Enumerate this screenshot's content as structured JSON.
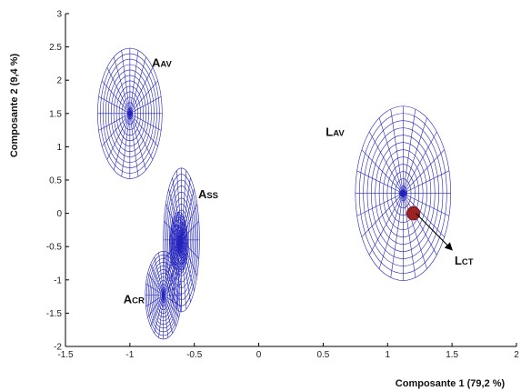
{
  "chart_data": {
    "type": "scatter",
    "title": "",
    "xlabel": "Composante 1 (79,2 %)",
    "ylabel": "Composante 2 (9,4 %)",
    "xlim": [
      -1.5,
      2
    ],
    "ylim": [
      -2,
      3
    ],
    "xticks": [
      "-1.5",
      "-1",
      "-0.5",
      "0",
      "0.5",
      "1",
      "1.5",
      "2"
    ],
    "xtick_values": [
      -1.5,
      -1,
      -0.5,
      0,
      0.5,
      1,
      1.5,
      2
    ],
    "yticks": [
      "-2",
      "-1.5",
      "-1",
      "-0.5",
      "0",
      "0.5",
      "1",
      "1.5",
      "2",
      "2.5",
      "3"
    ],
    "ytick_values": [
      -2,
      -1.5,
      -1,
      -0.5,
      0,
      0.5,
      1,
      1.5,
      2,
      2.5,
      3
    ],
    "grid": false,
    "colors": {
      "ellipse": "#2222bb",
      "lct": "#8b1a1a",
      "axis": "#000000"
    },
    "series": [
      {
        "label_main": "A",
        "label_sub": "AV",
        "center": [
          -1.0,
          1.5
        ],
        "radius": [
          0.25,
          0.98
        ],
        "color": "#2222bb"
      },
      {
        "label_main": "A",
        "label_sub": "SS",
        "center": [
          -0.62,
          -0.45
        ],
        "radius": [
          0.07,
          0.47
        ],
        "color": "#2222bb"
      },
      {
        "label_main": "A",
        "label_sub": "SS",
        "center": [
          -0.6,
          -0.4
        ],
        "radius": [
          0.14,
          1.08
        ],
        "color": "#2222bb"
      },
      {
        "label_main": "A",
        "label_sub": "CR",
        "center": [
          -0.74,
          -1.23
        ],
        "radius": [
          0.14,
          0.66
        ],
        "color": "#2222bb"
      },
      {
        "label_main": "L",
        "label_sub": "AV",
        "center": [
          1.12,
          0.3
        ],
        "radius": [
          0.37,
          1.31
        ],
        "color": "#2222bb"
      },
      {
        "label_main": "L",
        "label_sub": "CT",
        "center": [
          1.2,
          0.0
        ],
        "radius": [
          0.05,
          0.1
        ],
        "color": "#8b1a1a"
      }
    ],
    "annotations": [
      {
        "main": "A",
        "sub": "AV",
        "x": -0.83,
        "y": 2.2
      },
      {
        "main": "A",
        "sub": "SS",
        "x": -0.47,
        "y": 0.23
      },
      {
        "main": "A",
        "sub": "CR",
        "x": -1.05,
        "y": -1.35
      },
      {
        "main": "L",
        "sub": "AV",
        "x": 0.52,
        "y": 1.16
      },
      {
        "main": "L",
        "sub": "CT",
        "x": 1.52,
        "y": -0.77
      }
    ],
    "arrow": {
      "from": [
        1.22,
        0.0
      ],
      "to": [
        1.5,
        -0.55
      ]
    }
  }
}
